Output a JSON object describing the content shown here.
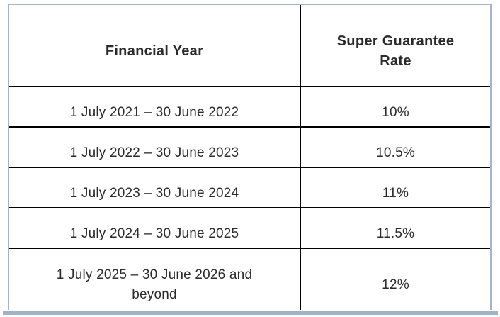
{
  "table": {
    "headers": [
      "Financial Year",
      "Super Guarantee Rate"
    ],
    "rows": [
      [
        "1 July 2021 – 30 June 2022",
        "10%"
      ],
      [
        "1 July 2022 – 30 June 2023",
        "10.5%"
      ],
      [
        "1 July 2023 – 30 June 2024",
        "11%"
      ],
      [
        "1 July 2024 – 30 June 2025",
        "11.5%"
      ],
      [
        "1 July 2025 – 30 June 2026 and beyond",
        "12%"
      ]
    ]
  },
  "chart_data": {
    "type": "table",
    "columns": [
      "Financial Year",
      "Super Guarantee Rate"
    ],
    "rows": [
      [
        "1 July 2021 – 30 June 2022",
        "10%"
      ],
      [
        "1 July 2022 – 30 June 2023",
        "10.5%"
      ],
      [
        "1 July 2023 – 30 June 2024",
        "11%"
      ],
      [
        "1 July 2024 – 30 June 2025",
        "11.5%"
      ],
      [
        "1 July 2025 – 30 June 2026 and beyond",
        "12%"
      ]
    ],
    "categories": [
      "1 July 2021 – 30 June 2022",
      "1 July 2022 – 30 June 2023",
      "1 July 2023 – 30 June 2024",
      "1 July 2024 – 30 June 2025",
      "1 July 2025 – 30 June 2026 and beyond"
    ],
    "values": [
      10,
      10.5,
      11,
      11.5,
      12
    ],
    "value_unit": "%"
  },
  "colors": {
    "frame_border": "#a6b4c9",
    "bottom_bar": "#a0b2c8",
    "grid_line": "#000000",
    "text": "#2b2b2b",
    "background": "#ffffff"
  }
}
